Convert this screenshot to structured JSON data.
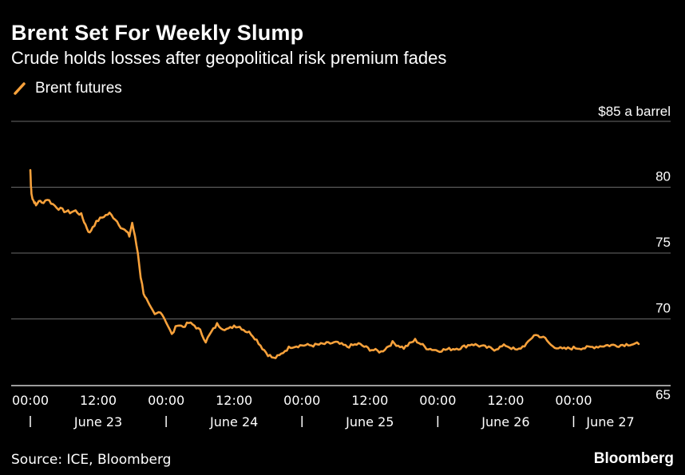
{
  "header": {
    "title": "Brent Set For Weekly Slump",
    "subtitle": "Crude holds losses after geopolitical risk premium fades"
  },
  "footer": {
    "source": "Source: ICE, Bloomberg",
    "brand": "Bloomberg"
  },
  "chart_data": {
    "type": "line",
    "title": "Brent Set For Weekly Slump",
    "subtitle": "Crude holds losses after geopolitical risk premium fades",
    "unit_label": "$85 a barrel",
    "ylim": [
      65,
      85
    ],
    "y_ticks": [
      {
        "value": 80,
        "label": "80"
      },
      {
        "value": 75,
        "label": "75"
      },
      {
        "value": 70,
        "label": "70"
      },
      {
        "value": 65,
        "label": "65"
      }
    ],
    "xlim": [
      -0.5,
      112
    ],
    "x_ticks": [
      {
        "hours": 0,
        "label": "00:00"
      },
      {
        "hours": 12,
        "label": "12:00"
      },
      {
        "hours": 24,
        "label": "00:00"
      },
      {
        "hours": 36,
        "label": "12:00"
      },
      {
        "hours": 48,
        "label": "00:00"
      },
      {
        "hours": 60,
        "label": "12:00"
      },
      {
        "hours": 72,
        "label": "00:00"
      },
      {
        "hours": 84,
        "label": "12:00"
      },
      {
        "hours": 96,
        "label": "00:00"
      }
    ],
    "day_labels": [
      {
        "hours": 12,
        "label": "June 23"
      },
      {
        "hours": 36,
        "label": "June 24"
      },
      {
        "hours": 60,
        "label": "June 25"
      },
      {
        "hours": 84,
        "label": "June 26"
      },
      {
        "hours": 102.5,
        "label": "June 27"
      }
    ],
    "day_separators": [
      0,
      24,
      48,
      72,
      96
    ],
    "legend": "Brent futures",
    "color": "#f7a13b",
    "series": [
      {
        "name": "Brent futures",
        "x": [
          0,
          0.1,
          0.2,
          0.4,
          0.7,
          1,
          1.5,
          2,
          3,
          4,
          5,
          6,
          7,
          8,
          9,
          9.5,
          10,
          10.5,
          11,
          12,
          13,
          14,
          15,
          16,
          17,
          17.5,
          18,
          18.5,
          19,
          19.5,
          20,
          20.5,
          21,
          22,
          23,
          24,
          25,
          26,
          27,
          28,
          29,
          30,
          31,
          32,
          33,
          34,
          35,
          36,
          37,
          38,
          39,
          40,
          41,
          42,
          43,
          44,
          45,
          46,
          48,
          50,
          52,
          54,
          56,
          58,
          60,
          62,
          64,
          66,
          68,
          70,
          72,
          74,
          76,
          78,
          80,
          82,
          84,
          86,
          88,
          89,
          90,
          91,
          92,
          94,
          96,
          98,
          100,
          102,
          104,
          106,
          107.5
        ],
        "values": [
          81.3,
          80.1,
          79.6,
          79.1,
          78.9,
          78.6,
          79.0,
          78.8,
          79.1,
          78.7,
          78.4,
          78.2,
          78.1,
          78.2,
          77.9,
          77.4,
          76.9,
          76.5,
          77.0,
          77.5,
          77.8,
          78.0,
          77.6,
          77.0,
          76.6,
          76.3,
          77.3,
          76.2,
          75.0,
          73.2,
          72.0,
          71.5,
          71.0,
          70.3,
          70.6,
          69.8,
          68.8,
          69.6,
          69.4,
          69.7,
          69.5,
          69.1,
          68.3,
          69.0,
          69.6,
          69.3,
          69.2,
          69.5,
          69.4,
          69.1,
          68.9,
          68.4,
          67.8,
          67.3,
          67.0,
          67.2,
          67.6,
          67.9,
          68.0,
          68.0,
          68.1,
          68.2,
          67.9,
          68.1,
          67.7,
          67.5,
          68.2,
          67.8,
          68.4,
          67.8,
          67.6,
          67.7,
          67.8,
          68.1,
          67.9,
          67.7,
          68.0,
          67.6,
          68.2,
          68.8,
          68.7,
          68.5,
          68.0,
          67.7,
          67.8,
          67.8,
          67.9,
          68.0,
          68.0,
          68.1,
          68.1
        ]
      }
    ]
  }
}
